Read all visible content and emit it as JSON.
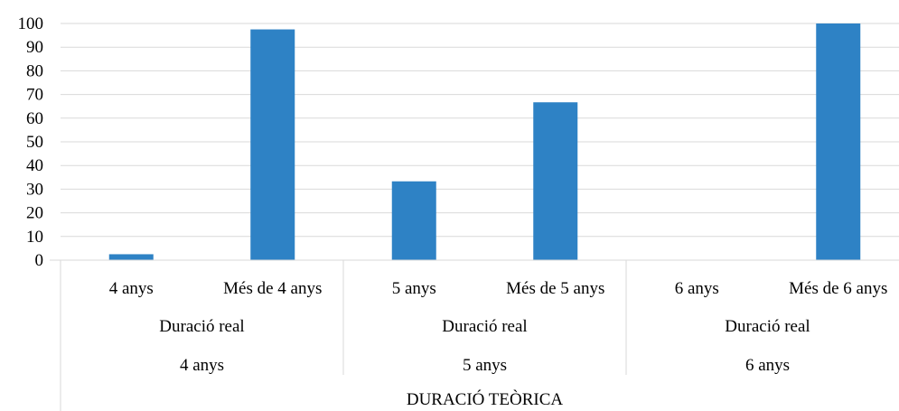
{
  "chart_data": {
    "type": "bar",
    "title": "",
    "ylabel": "",
    "ylim": [
      0,
      100
    ],
    "yticks": [
      0,
      10,
      20,
      30,
      40,
      50,
      60,
      70,
      80,
      90,
      100
    ],
    "grid": true,
    "legend": "none",
    "bar_color": "#2E82C5",
    "x_axis_title": "DURACIÓ TEÒRICA",
    "groups": [
      {
        "theoretical": "4 anys",
        "subgroup": "Duració real",
        "categories": [
          "4 anys",
          "Més de 4 anys"
        ],
        "values": [
          2.5,
          97.5
        ]
      },
      {
        "theoretical": "5 anys",
        "subgroup": "Duració real",
        "categories": [
          "5 anys",
          "Més de 5 anys"
        ],
        "values": [
          33.3,
          66.7
        ]
      },
      {
        "theoretical": "6 anys",
        "subgroup": "Duració real",
        "categories": [
          "6 anys",
          "Més de 6 anys"
        ],
        "values": [
          0,
          100
        ]
      }
    ]
  }
}
